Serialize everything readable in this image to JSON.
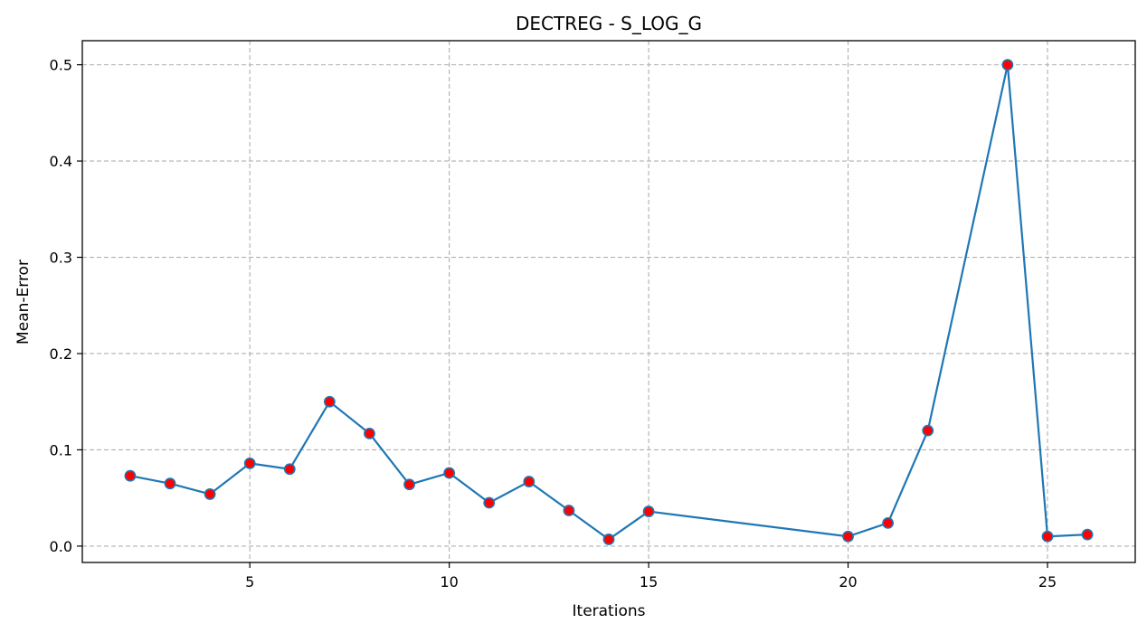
{
  "chart_data": {
    "type": "line",
    "title": "DECTREG - S_LOG_G",
    "xlabel": "Iterations",
    "ylabel": "Mean-Error",
    "xlim": [
      0.8,
      27.2
    ],
    "ylim": [
      -0.017,
      0.525
    ],
    "xticks": [
      5,
      10,
      15,
      20,
      25
    ],
    "yticks": [
      0.0,
      0.1,
      0.2,
      0.3,
      0.4,
      0.5
    ],
    "ytick_labels": [
      "0.0",
      "0.1",
      "0.2",
      "0.3",
      "0.4",
      "0.5"
    ],
    "grid": true,
    "x": [
      2,
      3,
      4,
      5,
      6,
      7,
      8,
      9,
      10,
      11,
      12,
      13,
      14,
      15,
      20,
      21,
      22,
      24,
      25,
      26
    ],
    "series": [
      {
        "values": [
          0.073,
          0.065,
          0.054,
          0.086,
          0.08,
          0.15,
          0.117,
          0.064,
          0.076,
          0.045,
          0.067,
          0.037,
          0.007,
          0.036,
          0.01,
          0.024,
          0.12,
          0.5,
          0.01,
          0.012
        ],
        "line_color": "#1f77b4",
        "marker_face": "#ff0000",
        "marker_edge": "#1f77b4"
      }
    ]
  }
}
